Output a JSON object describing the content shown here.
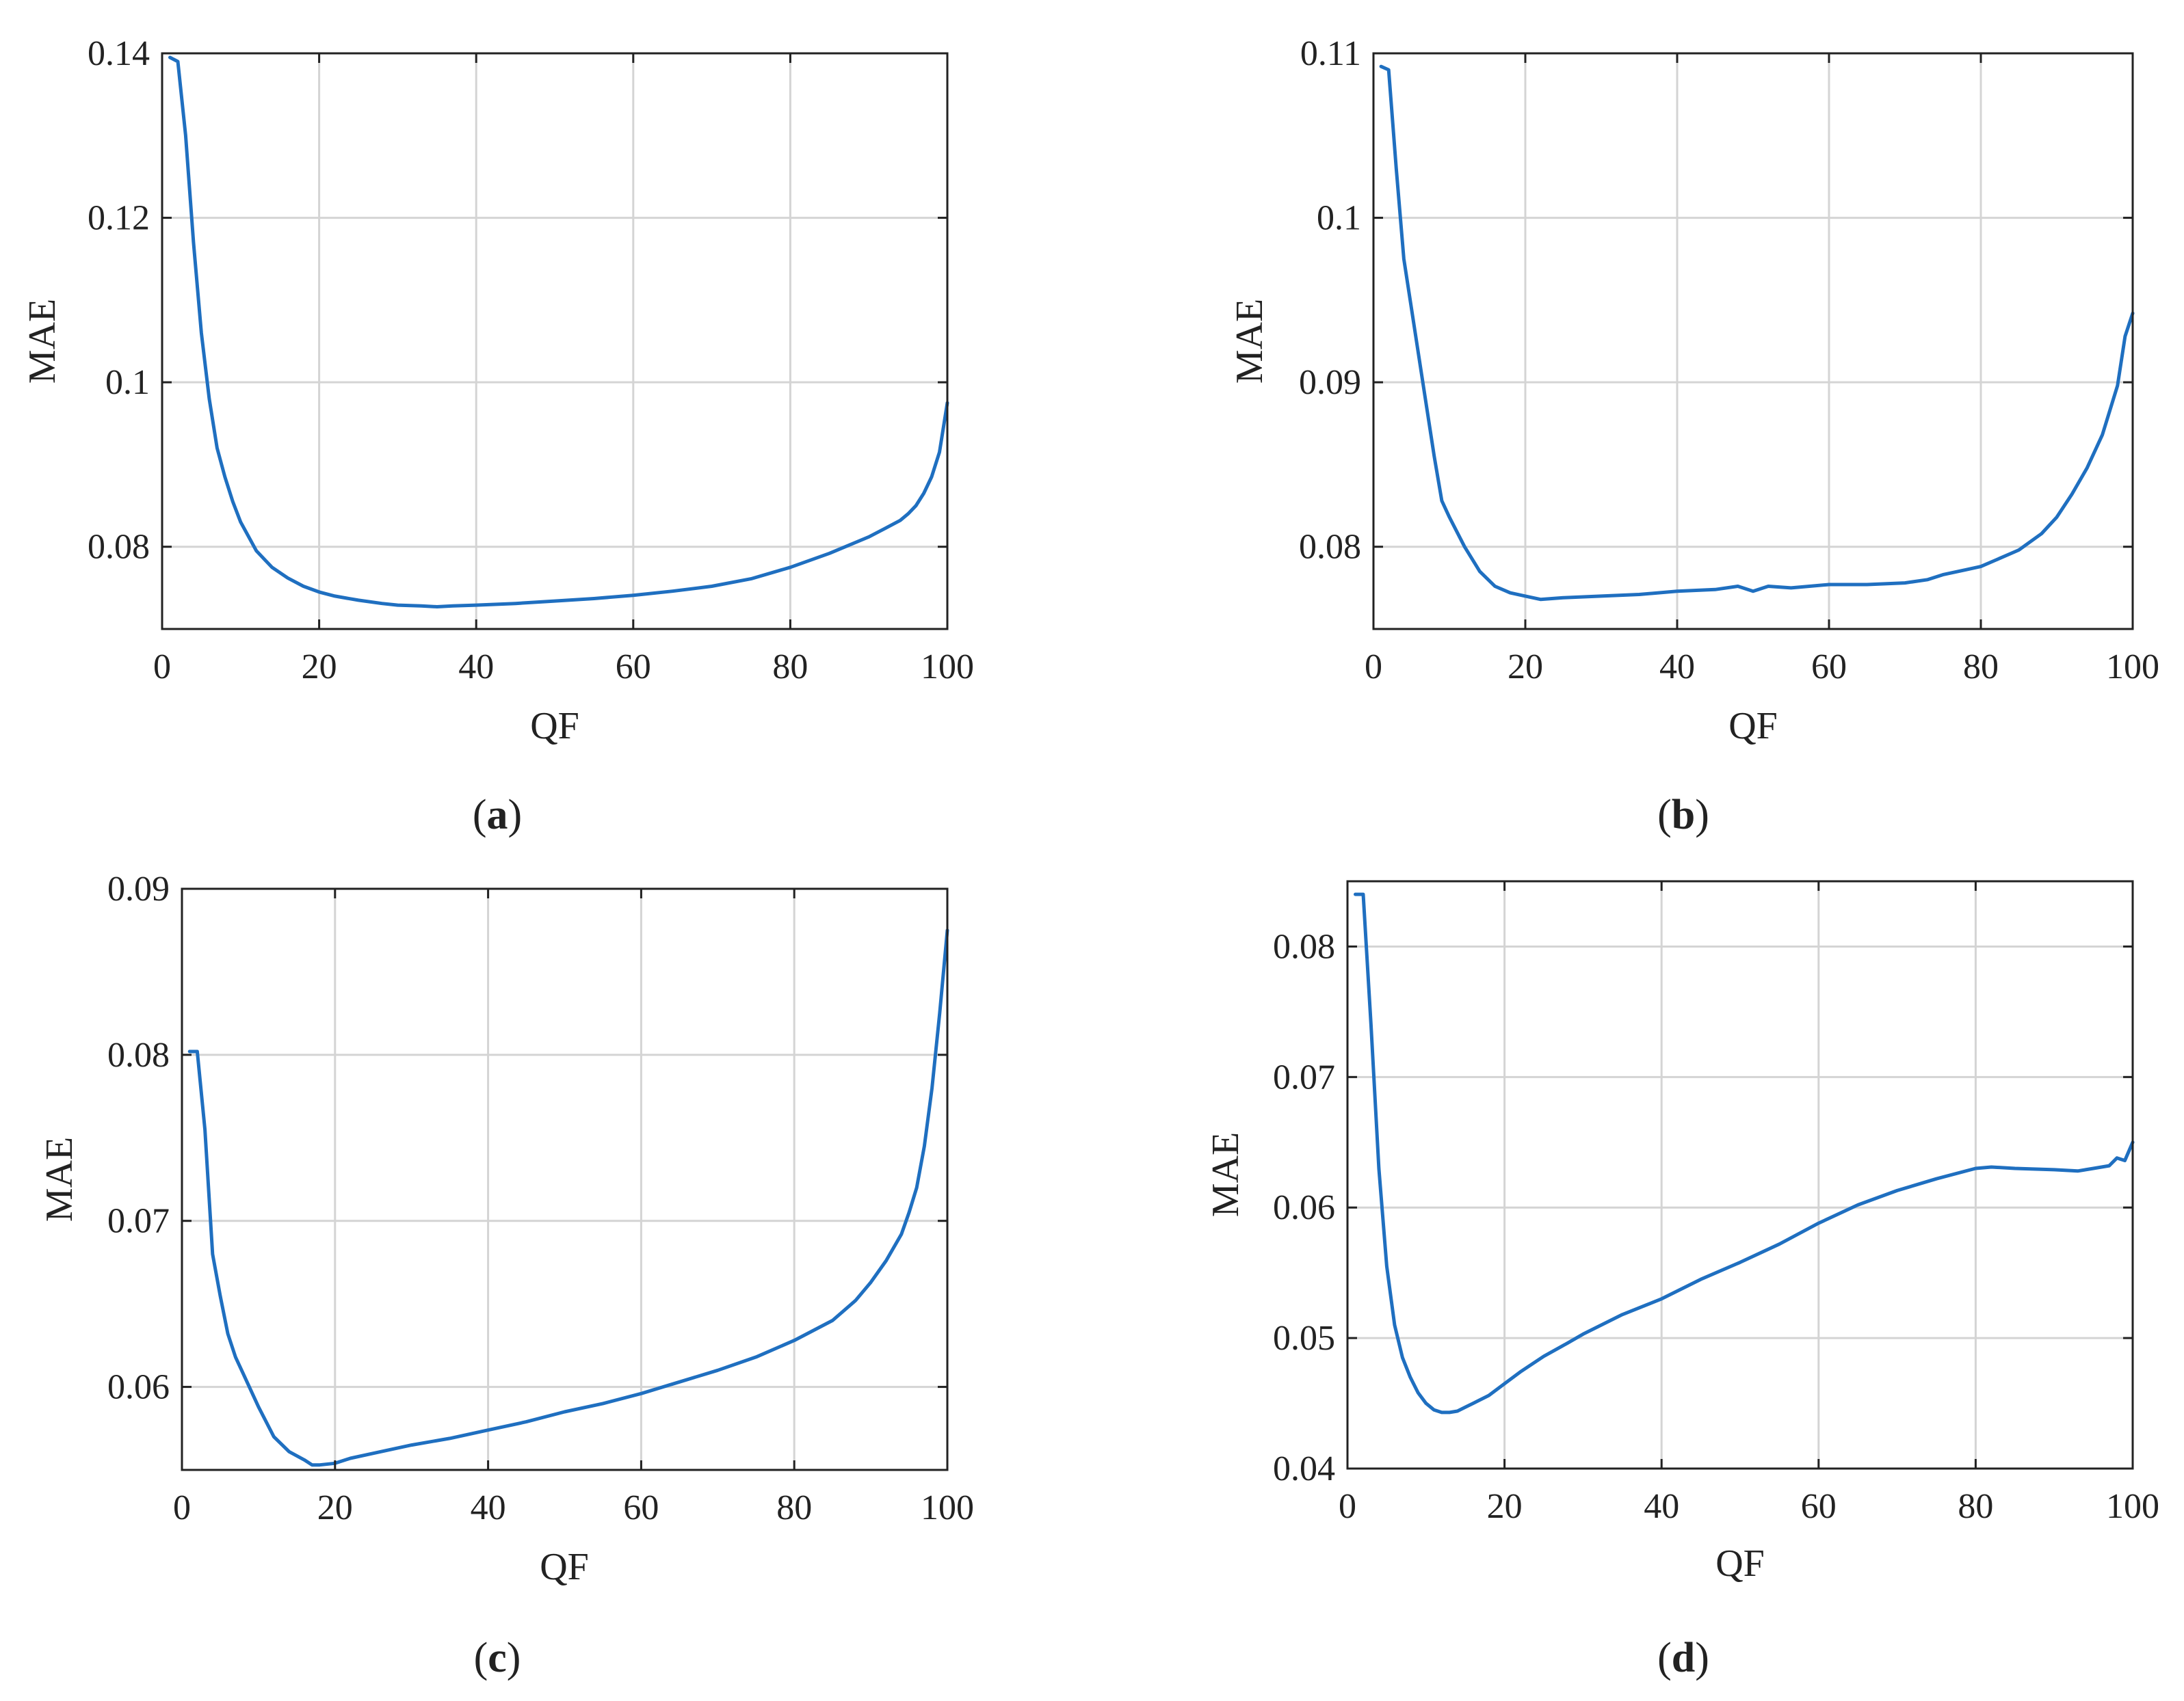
{
  "chart_data": [
    {
      "type": "line",
      "panel": "a",
      "caption": "(a)",
      "caption_open": "(",
      "caption_letter": "a",
      "caption_close": ")",
      "xlabel": "QF",
      "ylabel": "MAE",
      "xlim": [
        0,
        100
      ],
      "ylim": [
        0.07,
        0.14
      ],
      "xticks": [
        0,
        20,
        40,
        60,
        80,
        100
      ],
      "yticks": [
        0.08,
        0.1,
        0.12,
        0.14
      ],
      "ytick_labels": [
        "0.08",
        "0.1",
        "0.12",
        "0.14"
      ],
      "grid": true,
      "line_color": "#1f6fc0",
      "series": [
        {
          "name": "MAE",
          "x": [
            1,
            2,
            3,
            4,
            5,
            6,
            7,
            8,
            9,
            10,
            12,
            14,
            16,
            18,
            20,
            22,
            25,
            28,
            30,
            33,
            35,
            37,
            40,
            45,
            50,
            55,
            60,
            65,
            70,
            75,
            80,
            85,
            90,
            92,
            94,
            95,
            96,
            97,
            98,
            99,
            100
          ],
          "y": [
            0.1395,
            0.139,
            0.13,
            0.117,
            0.106,
            0.098,
            0.092,
            0.0885,
            0.0855,
            0.083,
            0.0795,
            0.0775,
            0.0762,
            0.0752,
            0.0745,
            0.074,
            0.0735,
            0.0731,
            0.0729,
            0.0728,
            0.0727,
            0.0728,
            0.0729,
            0.0731,
            0.0734,
            0.0737,
            0.0741,
            0.0746,
            0.0752,
            0.0761,
            0.0775,
            0.0792,
            0.0812,
            0.0822,
            0.0832,
            0.084,
            0.085,
            0.0865,
            0.0885,
            0.0915,
            0.0975
          ]
        }
      ]
    },
    {
      "type": "line",
      "panel": "b",
      "caption": "(b)",
      "caption_open": "(",
      "caption_letter": "b",
      "caption_close": ")",
      "xlabel": "QF",
      "ylabel": "MAE",
      "xlim": [
        0,
        100
      ],
      "ylim": [
        0.075,
        0.11
      ],
      "xticks": [
        0,
        20,
        40,
        60,
        80,
        100
      ],
      "yticks": [
        0.08,
        0.09,
        0.1,
        0.11
      ],
      "ytick_labels": [
        "0.08",
        "0.09",
        "0.1",
        "0.11"
      ],
      "grid": true,
      "line_color": "#1f6fc0",
      "series": [
        {
          "name": "MAE",
          "x": [
            1,
            2,
            3,
            4,
            5,
            6,
            7,
            8,
            9,
            10,
            12,
            14,
            16,
            18,
            20,
            22,
            25,
            30,
            35,
            40,
            45,
            48,
            50,
            52,
            55,
            60,
            65,
            70,
            73,
            75,
            78,
            80,
            82,
            85,
            88,
            90,
            92,
            94,
            96,
            98,
            99,
            100
          ],
          "y": [
            0.1092,
            0.109,
            0.103,
            0.0975,
            0.0945,
            0.0915,
            0.0885,
            0.0855,
            0.0828,
            0.0818,
            0.08,
            0.0785,
            0.0776,
            0.0772,
            0.077,
            0.0768,
            0.0769,
            0.077,
            0.0771,
            0.0773,
            0.0774,
            0.0776,
            0.0773,
            0.0776,
            0.0775,
            0.0777,
            0.0777,
            0.0778,
            0.078,
            0.0783,
            0.0786,
            0.0788,
            0.0792,
            0.0798,
            0.0808,
            0.0818,
            0.0832,
            0.0848,
            0.0868,
            0.0898,
            0.0928,
            0.0942
          ]
        }
      ]
    },
    {
      "type": "line",
      "panel": "c",
      "caption": "(c)",
      "caption_open": "(",
      "caption_letter": "c",
      "caption_close": ")",
      "xlabel": "QF",
      "ylabel": "MAE",
      "xlim": [
        0,
        100
      ],
      "ylim": [
        0.055,
        0.09
      ],
      "xticks": [
        0,
        20,
        40,
        60,
        80,
        100
      ],
      "yticks": [
        0.06,
        0.07,
        0.08,
        0.09
      ],
      "ytick_labels": [
        "0.06",
        "0.07",
        "0.08",
        "0.09"
      ],
      "grid": true,
      "line_color": "#1f6fc0",
      "series": [
        {
          "name": "MAE",
          "x": [
            1,
            2,
            3,
            4,
            5,
            6,
            7,
            8,
            10,
            12,
            14,
            16,
            17,
            18,
            20,
            22,
            25,
            30,
            35,
            40,
            45,
            50,
            55,
            60,
            65,
            70,
            75,
            80,
            85,
            88,
            90,
            92,
            94,
            95,
            96,
            97,
            98,
            99,
            100
          ],
          "y": [
            0.0802,
            0.0802,
            0.0755,
            0.068,
            0.0655,
            0.0632,
            0.0618,
            0.0608,
            0.0588,
            0.057,
            0.0561,
            0.0556,
            0.0553,
            0.0553,
            0.0554,
            0.0557,
            0.056,
            0.0565,
            0.0569,
            0.0574,
            0.0579,
            0.0585,
            0.059,
            0.0596,
            0.0603,
            0.061,
            0.0618,
            0.0628,
            0.064,
            0.0652,
            0.0663,
            0.0676,
            0.0692,
            0.0705,
            0.072,
            0.0745,
            0.078,
            0.0825,
            0.0875
          ]
        }
      ]
    },
    {
      "type": "line",
      "panel": "d",
      "caption": "(d)",
      "caption_open": "(",
      "caption_letter": "d",
      "caption_close": ")",
      "xlabel": "QF",
      "ylabel": "MAE",
      "xlim": [
        0,
        100
      ],
      "ylim": [
        0.04,
        0.085
      ],
      "xticks": [
        0,
        20,
        40,
        60,
        80,
        100
      ],
      "yticks": [
        0.04,
        0.05,
        0.06,
        0.07,
        0.08
      ],
      "ytick_labels": [
        "0.04",
        "0.05",
        "0.06",
        "0.07",
        "0.08"
      ],
      "grid": true,
      "line_color": "#1f6fc0",
      "series": [
        {
          "name": "MAE",
          "x": [
            1,
            2,
            3,
            4,
            5,
            6,
            7,
            8,
            9,
            10,
            11,
            12,
            13,
            14,
            15,
            16,
            18,
            20,
            22,
            25,
            28,
            30,
            35,
            40,
            45,
            50,
            55,
            60,
            65,
            70,
            75,
            80,
            82,
            85,
            90,
            93,
            95,
            97,
            98,
            99,
            100
          ],
          "y": [
            0.084,
            0.084,
            0.074,
            0.063,
            0.0555,
            0.051,
            0.0485,
            0.047,
            0.0458,
            0.045,
            0.0445,
            0.0443,
            0.0443,
            0.0444,
            0.0447,
            0.045,
            0.0456,
            0.0465,
            0.0474,
            0.0486,
            0.0496,
            0.0503,
            0.0518,
            0.053,
            0.0545,
            0.0558,
            0.0572,
            0.0588,
            0.0602,
            0.0613,
            0.0622,
            0.063,
            0.0631,
            0.063,
            0.0629,
            0.0628,
            0.063,
            0.0632,
            0.0638,
            0.0636,
            0.065
          ]
        }
      ]
    }
  ]
}
